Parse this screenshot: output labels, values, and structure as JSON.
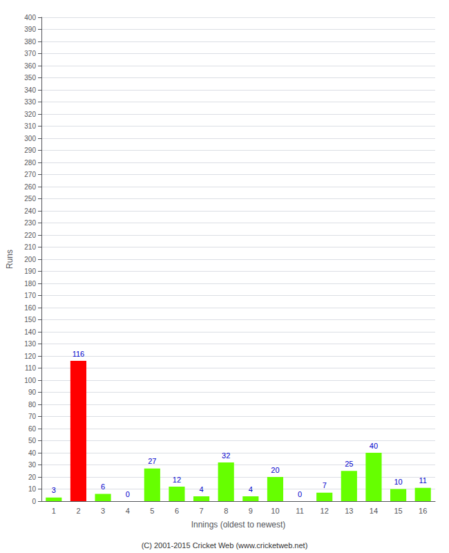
{
  "chart_data": {
    "type": "bar",
    "categories": [
      1,
      2,
      3,
      4,
      5,
      6,
      7,
      8,
      9,
      10,
      11,
      12,
      13,
      14,
      15,
      16
    ],
    "values": [
      3,
      116,
      6,
      0,
      27,
      12,
      4,
      32,
      4,
      20,
      0,
      7,
      25,
      40,
      10,
      11
    ],
    "colors": [
      "#66ff00",
      "#ff0000",
      "#66ff00",
      "#66ff00",
      "#66ff00",
      "#66ff00",
      "#66ff00",
      "#66ff00",
      "#66ff00",
      "#66ff00",
      "#66ff00",
      "#66ff00",
      "#66ff00",
      "#66ff00",
      "#66ff00",
      "#66ff00"
    ],
    "xlabel": "Innings (oldest to newest)",
    "ylabel": "Runs",
    "ylim": [
      0,
      400
    ],
    "yticks": [
      0,
      10,
      20,
      30,
      40,
      50,
      60,
      70,
      80,
      90,
      100,
      110,
      120,
      130,
      140,
      150,
      160,
      170,
      180,
      190,
      200,
      210,
      220,
      230,
      240,
      250,
      260,
      270,
      280,
      290,
      300,
      310,
      320,
      330,
      340,
      350,
      360,
      370,
      380,
      390,
      400
    ],
    "grid": true,
    "data_labels": true,
    "annotations": [
      "(C) 2001-2015 Cricket Web (www.cricketweb.net)"
    ]
  }
}
